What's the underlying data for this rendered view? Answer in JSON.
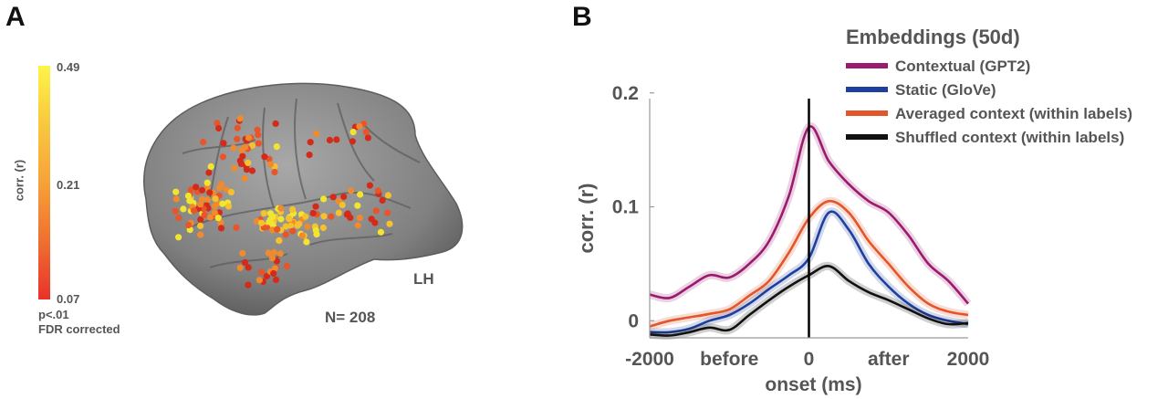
{
  "panel_a": {
    "letter": "A",
    "colorbar": {
      "label": "corr. (r)",
      "ticks": [
        "0.49",
        "0.21",
        "0.07"
      ],
      "note_line1": "p<.01",
      "note_line2": "FDR corrected",
      "colors": [
        "#fff44a",
        "#f9a23a",
        "#e8322a"
      ]
    },
    "hemisphere_label": "LH",
    "count_label": "N= 208",
    "brain_color": "#8a8a8a",
    "electrode_colors": [
      "#d42a1a",
      "#e8552a",
      "#f08a2e",
      "#f5c22e",
      "#f2e530"
    ]
  },
  "panel_b": {
    "letter": "B",
    "legend_title": "Embeddings (50d)"
  },
  "chart_data": {
    "type": "line",
    "title": "",
    "xlabel": "onset (ms)",
    "ylabel": "corr. (r)",
    "xlim": [
      -2000,
      2000
    ],
    "ylim": [
      -0.015,
      0.195
    ],
    "y_ticks": [
      0,
      0.1,
      0.2
    ],
    "y_tick_labels": [
      "0",
      "0.1",
      "0.2"
    ],
    "x_tick_labels": [
      {
        "x": -2000,
        "label": "-2000"
      },
      {
        "x": -1000,
        "label": "before"
      },
      {
        "x": 0,
        "label": "0"
      },
      {
        "x": 1000,
        "label": "after"
      },
      {
        "x": 2000,
        "label": "2000"
      }
    ],
    "onset_line_x": 0,
    "grid": false,
    "legend_position": "top-right",
    "x": [
      -2000,
      -1750,
      -1500,
      -1250,
      -1000,
      -750,
      -500,
      -250,
      0,
      250,
      500,
      750,
      1000,
      1250,
      1500,
      1750,
      2000
    ],
    "series": [
      {
        "name": "Contextual (GPT2)",
        "color": "#9a1b6e",
        "values": [
          0.023,
          0.02,
          0.03,
          0.04,
          0.038,
          0.05,
          0.07,
          0.11,
          0.17,
          0.14,
          0.12,
          0.105,
          0.095,
          0.075,
          0.05,
          0.035,
          0.015
        ]
      },
      {
        "name": "Static (GloVe)",
        "color": "#1f3f9e",
        "values": [
          -0.01,
          -0.01,
          -0.007,
          0.0,
          0.005,
          0.015,
          0.028,
          0.04,
          0.055,
          0.095,
          0.08,
          0.05,
          0.03,
          0.015,
          0.005,
          0.0,
          -0.003
        ]
      },
      {
        "name": "Averaged context (within labels)",
        "color": "#e2562a",
        "values": [
          -0.005,
          0.0,
          0.003,
          0.006,
          0.01,
          0.022,
          0.035,
          0.06,
          0.09,
          0.105,
          0.095,
          0.07,
          0.05,
          0.03,
          0.015,
          0.008,
          0.005
        ]
      },
      {
        "name": "Shuffled context (within labels)",
        "color": "#111111",
        "values": [
          -0.012,
          -0.013,
          -0.01,
          -0.006,
          -0.008,
          0.005,
          0.018,
          0.03,
          0.04,
          0.048,
          0.035,
          0.025,
          0.018,
          0.01,
          0.002,
          -0.003,
          -0.002
        ]
      }
    ]
  }
}
